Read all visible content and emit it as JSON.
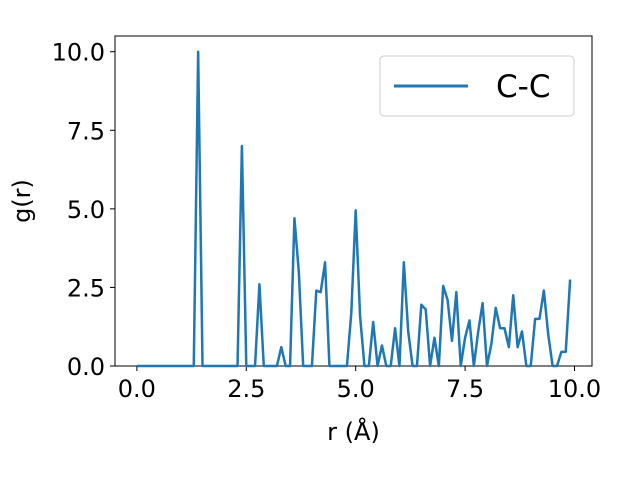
{
  "chart_data": {
    "type": "line",
    "xlabel": "r (Å)",
    "ylabel": "g(r)",
    "xlim": [
      -0.5,
      10.4
    ],
    "ylim": [
      0,
      10.5
    ],
    "xticks": [
      0.0,
      2.5,
      5.0,
      7.5,
      10.0
    ],
    "xtick_labels": [
      "0.0",
      "2.5",
      "5.0",
      "7.5",
      "10.0"
    ],
    "yticks": [
      0.0,
      2.5,
      5.0,
      7.5,
      10.0
    ],
    "ytick_labels": [
      "0.0",
      "2.5",
      "5.0",
      "7.5",
      "10.0"
    ],
    "grid": false,
    "legend_position": "top-right",
    "series": [
      {
        "name": "C-C",
        "color": "#1f77b4",
        "x": [
          0.0,
          0.1,
          0.2,
          0.3,
          0.4,
          0.5,
          0.6,
          0.7,
          0.8,
          0.9,
          1.0,
          1.1,
          1.2,
          1.3,
          1.4,
          1.5,
          1.6,
          1.7,
          1.8,
          1.9,
          2.0,
          2.1,
          2.2,
          2.3,
          2.4,
          2.5,
          2.6,
          2.7,
          2.8,
          2.9,
          3.0,
          3.1,
          3.2,
          3.3,
          3.4,
          3.5,
          3.6,
          3.7,
          3.8,
          3.9,
          4.0,
          4.1,
          4.2,
          4.3,
          4.4,
          4.5,
          4.6,
          4.7,
          4.8,
          4.9,
          5.0,
          5.1,
          5.2,
          5.3,
          5.4,
          5.5,
          5.6,
          5.7,
          5.8,
          5.9,
          6.0,
          6.1,
          6.2,
          6.3,
          6.4,
          6.5,
          6.6,
          6.7,
          6.8,
          6.9,
          7.0,
          7.1,
          7.2,
          7.3,
          7.4,
          7.5,
          7.6,
          7.7,
          7.8,
          7.9,
          8.0,
          8.1,
          8.2,
          8.3,
          8.4,
          8.5,
          8.6,
          8.7,
          8.8,
          8.9,
          9.0,
          9.1,
          9.2,
          9.3,
          9.4,
          9.5,
          9.6,
          9.7,
          9.8,
          9.9
        ],
        "y": [
          0,
          0,
          0,
          0,
          0,
          0,
          0,
          0,
          0,
          0,
          0,
          0,
          0,
          0,
          10.0,
          0,
          0,
          0,
          0,
          0,
          0,
          0,
          0,
          0,
          7.0,
          0,
          0,
          0,
          2.6,
          0,
          0,
          0,
          0,
          0.6,
          0,
          0,
          4.7,
          3.0,
          0,
          0,
          0,
          2.4,
          2.35,
          3.3,
          0,
          0,
          0,
          0,
          0,
          1.7,
          4.95,
          1.6,
          0,
          0,
          1.4,
          0,
          0.65,
          0,
          0,
          1.2,
          0,
          3.3,
          1.1,
          0,
          0,
          1.95,
          1.8,
          0,
          0.9,
          0,
          2.55,
          2.1,
          0.8,
          2.35,
          0,
          0.9,
          1.45,
          0,
          1.1,
          2.0,
          0,
          0.7,
          1.85,
          1.2,
          1.2,
          0.6,
          2.25,
          0.6,
          1.1,
          0,
          0,
          1.5,
          1.5,
          2.4,
          1.0,
          0,
          0,
          0.45,
          0.45,
          2.75
        ]
      }
    ]
  }
}
